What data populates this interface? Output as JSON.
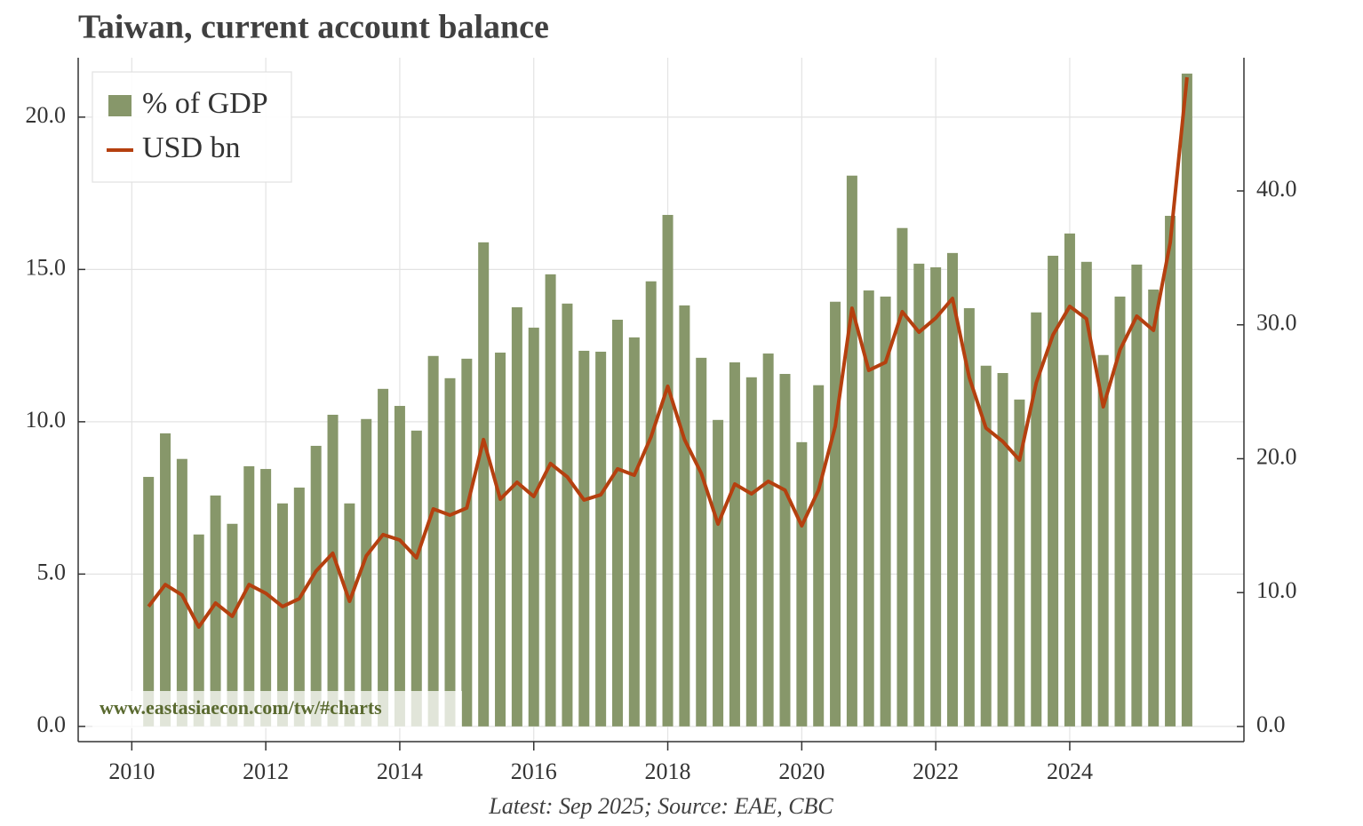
{
  "chart_data": {
    "type": "bar_line",
    "title": "Taiwan, current account balance",
    "footnote": "Latest: Sep 2025; Source: EAE, CBC",
    "watermark": "www.eastasiaecon.com/tw/#charts",
    "x": [
      2010.25,
      2010.5,
      2010.75,
      2011,
      2011.25,
      2011.5,
      2011.75,
      2012,
      2012.25,
      2012.5,
      2012.75,
      2013,
      2013.25,
      2013.5,
      2013.75,
      2014,
      2014.25,
      2014.5,
      2014.75,
      2015,
      2015.25,
      2015.5,
      2015.75,
      2016,
      2016.25,
      2016.5,
      2016.75,
      2017,
      2017.25,
      2017.5,
      2017.75,
      2018,
      2018.25,
      2018.5,
      2018.75,
      2019,
      2019.25,
      2019.5,
      2019.75,
      2020,
      2020.25,
      2020.5,
      2020.75,
      2021,
      2021.25,
      2021.5,
      2021.75,
      2022,
      2022.25,
      2022.5,
      2022.75,
      2023,
      2023.25,
      2023.5,
      2023.75,
      2024,
      2024.25,
      2024.5,
      2024.75,
      2025,
      2025.25,
      2025.5,
      2025.75
    ],
    "xlim": [
      2009.2,
      2026.6
    ],
    "xticks": [
      2010,
      2012,
      2014,
      2016,
      2018,
      2020,
      2022,
      2024
    ],
    "ylim": [
      -0.5,
      21.95
    ],
    "yticks": [
      {
        "value": 0,
        "label": "0.0"
      },
      {
        "value": 5,
        "label": "5.0"
      },
      {
        "value": 10,
        "label": "10.0"
      },
      {
        "value": 15,
        "label": "15.0"
      },
      {
        "value": 20,
        "label": "20.0"
      }
    ],
    "y2lim": [
      -1.13,
      49.95
    ],
    "y2ticks": [
      {
        "value": 0,
        "label": "0.0"
      },
      {
        "value": 10,
        "label": "10.0"
      },
      {
        "value": 20,
        "label": "20.0"
      },
      {
        "value": 30,
        "label": "30.0"
      },
      {
        "value": 40,
        "label": "40.0"
      }
    ],
    "grid": true,
    "legend": "upper left",
    "series": [
      {
        "name": "% of GDP",
        "type": "bar",
        "color": "#87976a",
        "values": [
          8.19,
          9.62,
          8.78,
          6.3,
          7.58,
          6.65,
          8.54,
          8.45,
          7.32,
          7.84,
          9.21,
          10.23,
          7.32,
          10.09,
          11.08,
          10.52,
          9.71,
          12.16,
          11.43,
          12.07,
          15.89,
          12.27,
          13.76,
          13.09,
          14.84,
          13.88,
          12.33,
          12.3,
          13.35,
          12.77,
          14.61,
          16.79,
          13.82,
          12.1,
          10.06,
          11.95,
          11.46,
          12.24,
          11.57,
          9.33,
          11.2,
          13.94,
          18.08,
          14.31,
          14.11,
          16.36,
          15.19,
          15.07,
          15.54,
          13.73,
          11.84,
          11.6,
          10.73,
          13.59,
          15.45,
          16.18,
          15.25,
          12.19,
          14.11,
          15.16,
          14.34,
          16.76,
          21.43
        ]
      },
      {
        "name": "USD bn",
        "type": "line",
        "axis": "y2",
        "color": "#b5400f",
        "values": [
          8.96,
          10.6,
          9.82,
          7.43,
          9.22,
          8.23,
          10.6,
          9.95,
          8.96,
          9.55,
          11.61,
          12.94,
          9.35,
          12.74,
          14.33,
          13.93,
          12.6,
          16.25,
          15.79,
          16.32,
          21.43,
          16.98,
          18.24,
          17.18,
          19.64,
          18.64,
          16.92,
          17.31,
          19.24,
          18.77,
          21.63,
          25.41,
          21.43,
          18.91,
          15.12,
          18.11,
          17.38,
          18.31,
          17.65,
          14.99,
          17.65,
          22.42,
          31.24,
          26.6,
          27.2,
          30.98,
          29.45,
          30.51,
          31.97,
          26.07,
          22.29,
          21.29,
          19.9,
          25.67,
          29.25,
          31.38,
          30.45,
          23.88,
          28.13,
          30.65,
          29.59,
          36.15,
          48.49
        ]
      }
    ]
  }
}
